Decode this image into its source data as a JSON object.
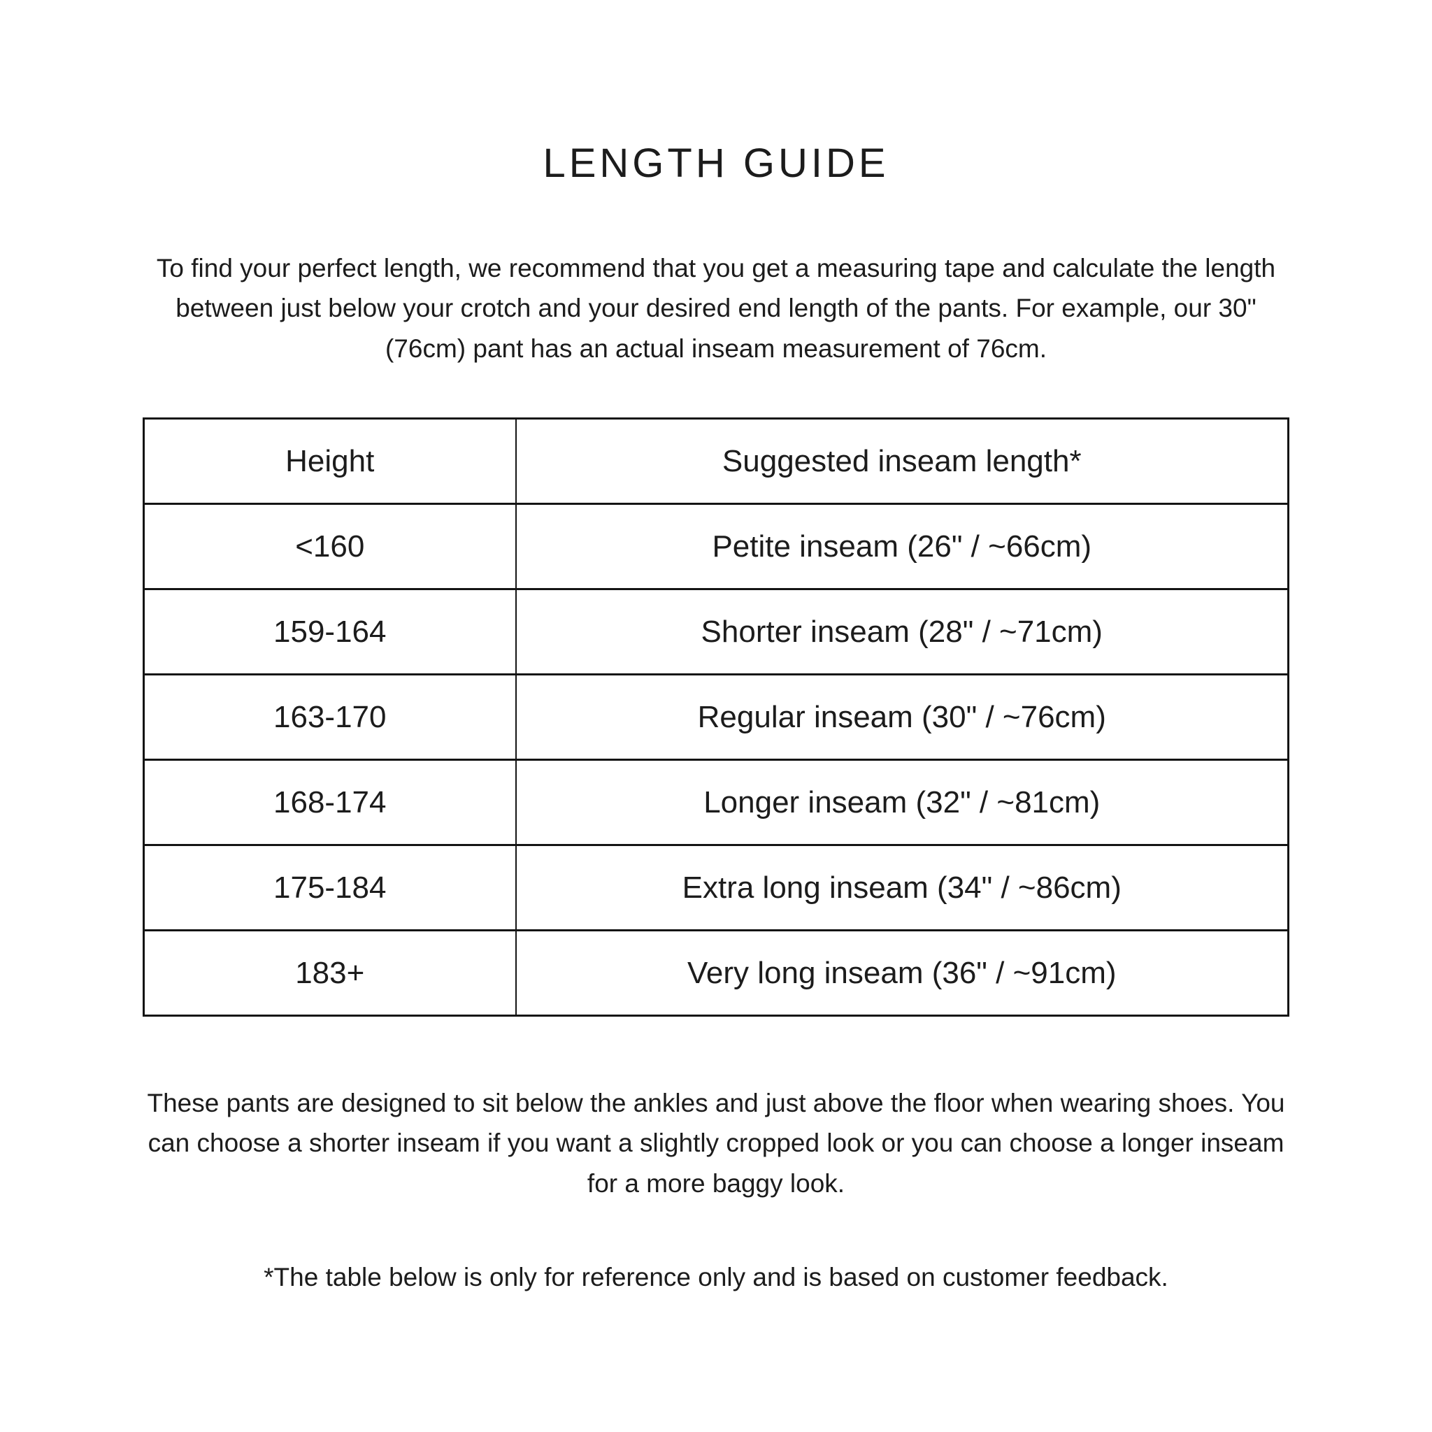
{
  "page": {
    "title": "LENGTH GUIDE",
    "intro": "To find your perfect length, we recommend that you get a measuring tape and calculate the length between just below your crotch and your desired end length of the pants. For example, our 30\" (76cm) pant has an actual inseam measurement of 76cm.",
    "note": "These pants are designed to sit below the ankles and just above the floor when wearing shoes. You can choose a shorter inseam if you want a slightly cropped look or you can choose a longer inseam for a more baggy look.",
    "footnote": "*The table below is only for reference only and is based on customer feedback."
  },
  "table": {
    "headers": {
      "height": "Height",
      "inseam": "Suggested inseam length*"
    },
    "rows": [
      {
        "height": "<160",
        "inseam": "Petite inseam (26\" / ~66cm)"
      },
      {
        "height": "159-164",
        "inseam": "Shorter inseam (28\" / ~71cm)"
      },
      {
        "height": "163-170",
        "inseam": "Regular inseam (30\" / ~76cm)"
      },
      {
        "height": "168-174",
        "inseam": "Longer inseam (32\" / ~81cm)"
      },
      {
        "height": "175-184",
        "inseam": "Extra long inseam (34\" / ~86cm)"
      },
      {
        "height": "183+",
        "inseam": "Very long inseam (36\" / ~91cm)"
      }
    ]
  },
  "colors": {
    "background": "#ffffff",
    "text": "#1c1c1c",
    "border": "#141414"
  }
}
